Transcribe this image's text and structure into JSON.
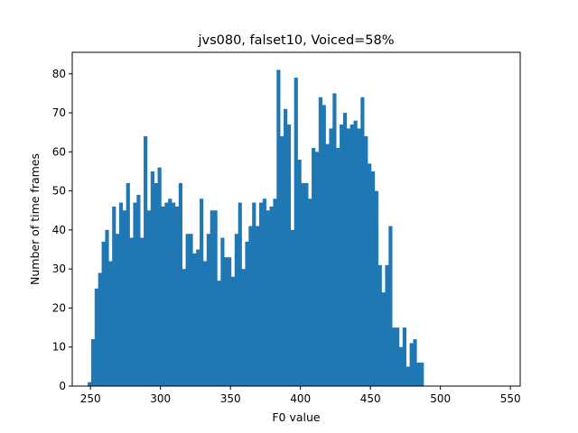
{
  "chart_data": {
    "type": "bar",
    "title": "jvs080, falset10, Voiced=58%",
    "xlabel": "F0 value",
    "ylabel": "Number of time frames",
    "xlim": [
      237,
      557
    ],
    "ylim": [
      0,
      85.5
    ],
    "xticks": [
      250,
      300,
      350,
      400,
      450,
      500,
      550
    ],
    "yticks": [
      0,
      10,
      20,
      30,
      40,
      50,
      60,
      70,
      80
    ],
    "bin_start": 248,
    "bin_width": 2.5,
    "values": [
      1,
      12,
      25,
      29,
      37,
      40,
      32,
      46,
      39,
      47,
      45,
      52,
      38,
      47,
      49,
      38,
      64,
      45,
      55,
      52,
      56,
      46,
      47,
      48,
      47,
      46,
      52,
      30,
      39,
      39,
      34,
      35,
      48,
      32,
      39,
      45,
      45,
      27,
      38,
      33,
      33,
      28,
      39,
      47,
      30,
      37,
      41,
      47,
      41,
      47,
      48,
      45,
      46,
      48,
      81,
      64,
      71,
      67,
      40,
      79,
      58,
      52,
      52,
      48,
      61,
      60,
      74,
      72,
      62,
      66,
      75,
      61,
      67,
      70,
      66,
      67,
      68,
      66,
      74,
      64,
      57,
      55,
      50,
      31,
      24,
      31,
      41,
      15,
      15,
      10,
      15,
      5,
      11,
      12,
      6,
      6
    ],
    "color": "#1f77b4"
  }
}
